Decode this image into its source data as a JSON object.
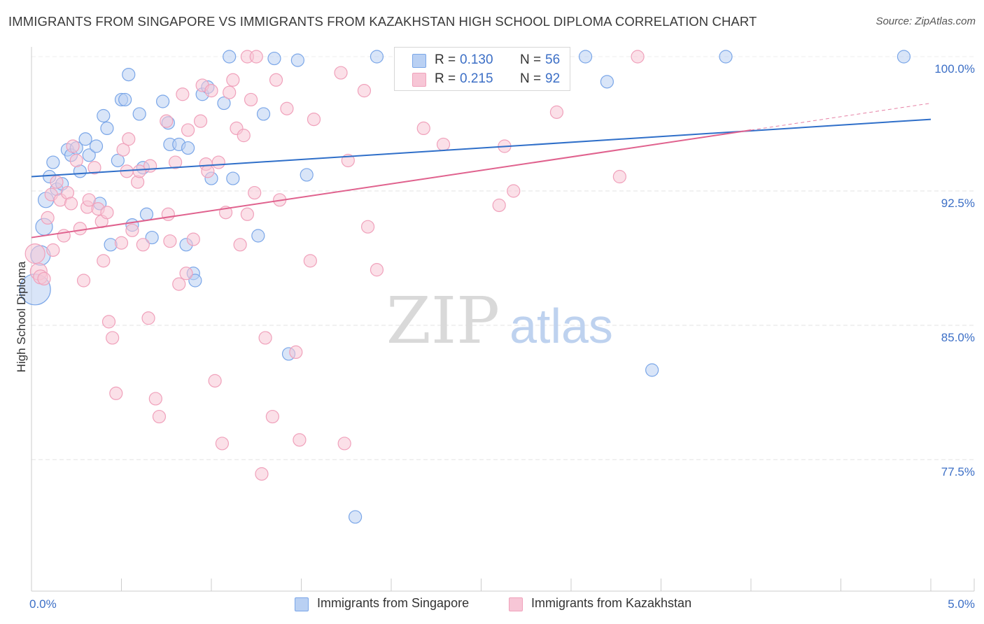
{
  "title": "IMMIGRANTS FROM SINGAPORE VS IMMIGRANTS FROM KAZAKHSTAN HIGH SCHOOL DIPLOMA CORRELATION CHART",
  "source": "Source: ZipAtlas.com",
  "watermark": {
    "zip": "ZIP",
    "atlas": "atlas"
  },
  "legend": {
    "r_label": "R = ",
    "n_label": "N = ",
    "rows": [
      {
        "r": "0.130",
        "n": "56"
      },
      {
        "r": "0.215",
        "n": "92"
      }
    ]
  },
  "chart_data": {
    "type": "scatter",
    "title": "IMMIGRANTS FROM SINGAPORE VS IMMIGRANTS FROM KAZAKHSTAN HIGH SCHOOL DIPLOMA CORRELATION CHART",
    "xlabel": "",
    "ylabel": "High School Diploma",
    "xlim": [
      0,
      5
    ],
    "ylim": [
      70,
      100.8
    ],
    "x_tick_labels": [
      {
        "v": 0,
        "label": "0.0%"
      },
      {
        "v": 5,
        "label": "5.0%"
      }
    ],
    "x_minor_ticks": [
      0.5,
      1.0,
      1.5,
      2.0,
      2.5,
      3.0,
      3.5,
      4.0,
      4.5,
      5.0
    ],
    "y_ticks": [
      {
        "v": 100,
        "label": "100.0%"
      },
      {
        "v": 92.5,
        "label": "92.5%"
      },
      {
        "v": 85,
        "label": "85.0%"
      },
      {
        "v": 77.5,
        "label": "77.5%"
      }
    ],
    "grid": true,
    "legend_position": "top-center",
    "series": [
      {
        "name": "Immigrants from Singapore",
        "color": "#7aa6e8",
        "fill": "#b9d0f3",
        "line_color": "#2f6fc9",
        "r": 0.13,
        "n": 56,
        "trend": {
          "x": [
            0,
            5
          ],
          "y": [
            93.3,
            96.5
          ]
        },
        "points": [
          [
            0.02,
            87.0,
            22
          ],
          [
            0.05,
            88.9,
            14
          ],
          [
            0.07,
            90.5,
            12
          ],
          [
            0.08,
            92.0,
            11
          ],
          [
            0.1,
            93.3,
            9
          ],
          [
            0.12,
            94.1,
            9
          ],
          [
            0.14,
            92.6,
            9
          ],
          [
            0.17,
            92.9,
            9
          ],
          [
            0.2,
            94.8,
            9
          ],
          [
            0.22,
            94.5,
            9
          ],
          [
            0.25,
            94.9,
            9
          ],
          [
            0.27,
            93.6,
            9
          ],
          [
            0.3,
            95.4,
            9
          ],
          [
            0.32,
            94.5,
            9
          ],
          [
            0.36,
            95.0,
            9
          ],
          [
            0.38,
            91.8,
            9
          ],
          [
            0.4,
            96.7,
            9
          ],
          [
            0.42,
            96.0,
            9
          ],
          [
            0.44,
            89.5,
            9
          ],
          [
            0.48,
            94.2,
            9
          ],
          [
            0.5,
            97.6,
            9
          ],
          [
            0.52,
            97.6,
            9
          ],
          [
            0.54,
            99.0,
            9
          ],
          [
            0.56,
            90.6,
            9
          ],
          [
            0.6,
            96.8,
            9
          ],
          [
            0.62,
            93.8,
            9
          ],
          [
            0.64,
            91.2,
            9
          ],
          [
            0.67,
            89.9,
            9
          ],
          [
            0.73,
            97.5,
            9
          ],
          [
            0.76,
            96.3,
            9
          ],
          [
            0.77,
            95.1,
            9
          ],
          [
            0.82,
            95.1,
            9
          ],
          [
            0.86,
            89.5,
            9
          ],
          [
            0.87,
            94.9,
            9
          ],
          [
            0.9,
            87.9,
            9
          ],
          [
            0.91,
            87.5,
            9
          ],
          [
            0.95,
            97.9,
            9
          ],
          [
            0.98,
            98.3,
            9
          ],
          [
            1.0,
            93.2,
            9
          ],
          [
            1.07,
            97.4,
            9
          ],
          [
            1.1,
            100.0,
            9
          ],
          [
            1.12,
            93.2,
            9
          ],
          [
            1.26,
            90.0,
            9
          ],
          [
            1.29,
            96.8,
            9
          ],
          [
            1.35,
            99.9,
            9
          ],
          [
            1.43,
            83.4,
            9
          ],
          [
            1.48,
            99.8,
            9
          ],
          [
            1.53,
            93.4,
            9
          ],
          [
            1.8,
            74.3,
            9
          ],
          [
            1.92,
            100.0,
            9
          ],
          [
            3.08,
            100.0,
            9
          ],
          [
            3.2,
            98.6,
            9
          ],
          [
            3.45,
            82.5,
            9
          ],
          [
            3.86,
            100.0,
            9
          ],
          [
            4.85,
            100.0,
            9
          ]
        ]
      },
      {
        "name": "Immigrants from Kazakhstan",
        "color": "#f0a1bb",
        "fill": "#f7c6d6",
        "line_color": "#e0628e",
        "r": 0.215,
        "n": 92,
        "trend": {
          "x": [
            0,
            4.0
          ],
          "y": [
            89.9,
            95.9
          ]
        },
        "trend_dashed": {
          "x": [
            4.0,
            5.0
          ],
          "y": [
            95.9,
            97.4
          ]
        },
        "points": [
          [
            0.02,
            89.0,
            14
          ],
          [
            0.04,
            88.0,
            12
          ],
          [
            0.05,
            87.7,
            10
          ],
          [
            0.07,
            87.6,
            9
          ],
          [
            0.09,
            91.0,
            9
          ],
          [
            0.11,
            92.3,
            9
          ],
          [
            0.12,
            89.2,
            9
          ],
          [
            0.14,
            93.0,
            9
          ],
          [
            0.16,
            92.0,
            9
          ],
          [
            0.18,
            90.0,
            9
          ],
          [
            0.2,
            92.4,
            9
          ],
          [
            0.22,
            91.8,
            9
          ],
          [
            0.23,
            95.0,
            9
          ],
          [
            0.25,
            94.2,
            9
          ],
          [
            0.27,
            90.4,
            9
          ],
          [
            0.29,
            87.5,
            9
          ],
          [
            0.31,
            91.6,
            9
          ],
          [
            0.32,
            92.0,
            9
          ],
          [
            0.35,
            93.8,
            9
          ],
          [
            0.37,
            91.5,
            9
          ],
          [
            0.39,
            90.8,
            9
          ],
          [
            0.4,
            88.6,
            9
          ],
          [
            0.42,
            91.3,
            9
          ],
          [
            0.43,
            85.2,
            9
          ],
          [
            0.45,
            84.3,
            9
          ],
          [
            0.47,
            81.2,
            9
          ],
          [
            0.5,
            89.6,
            9
          ],
          [
            0.51,
            94.8,
            9
          ],
          [
            0.53,
            93.6,
            9
          ],
          [
            0.54,
            95.4,
            9
          ],
          [
            0.56,
            90.3,
            9
          ],
          [
            0.59,
            93.0,
            9
          ],
          [
            0.6,
            93.6,
            9
          ],
          [
            0.62,
            89.5,
            9
          ],
          [
            0.65,
            85.4,
            9
          ],
          [
            0.66,
            93.9,
            9
          ],
          [
            0.69,
            80.9,
            9
          ],
          [
            0.71,
            79.9,
            9
          ],
          [
            0.75,
            96.4,
            9
          ],
          [
            0.76,
            91.2,
            9
          ],
          [
            0.77,
            89.7,
            9
          ],
          [
            0.8,
            94.1,
            9
          ],
          [
            0.82,
            87.3,
            9
          ],
          [
            0.84,
            97.9,
            9
          ],
          [
            0.86,
            87.9,
            9
          ],
          [
            0.87,
            95.9,
            9
          ],
          [
            0.9,
            89.8,
            9
          ],
          [
            0.94,
            96.4,
            9
          ],
          [
            0.95,
            98.4,
            9
          ],
          [
            0.97,
            94.0,
            9
          ],
          [
            0.98,
            93.6,
            9
          ],
          [
            1.0,
            98.1,
            9
          ],
          [
            1.02,
            81.9,
            9
          ],
          [
            1.04,
            94.1,
            9
          ],
          [
            1.06,
            78.4,
            9
          ],
          [
            1.08,
            91.3,
            9
          ],
          [
            1.1,
            98.0,
            9
          ],
          [
            1.12,
            98.7,
            9
          ],
          [
            1.14,
            96.0,
            9
          ],
          [
            1.16,
            89.5,
            9
          ],
          [
            1.18,
            95.6,
            9
          ],
          [
            1.2,
            91.2,
            9
          ],
          [
            1.22,
            97.6,
            9
          ],
          [
            1.24,
            92.4,
            9
          ],
          [
            1.28,
            76.7,
            9
          ],
          [
            1.3,
            84.3,
            9
          ],
          [
            1.34,
            79.9,
            9
          ],
          [
            1.36,
            98.7,
            9
          ],
          [
            1.38,
            92.0,
            9
          ],
          [
            1.42,
            97.1,
            9
          ],
          [
            1.47,
            83.5,
            9
          ],
          [
            1.49,
            78.6,
            9
          ],
          [
            1.55,
            88.6,
            9
          ],
          [
            1.57,
            96.5,
            9
          ],
          [
            1.72,
            99.1,
            9
          ],
          [
            1.74,
            78.4,
            9
          ],
          [
            1.76,
            94.2,
            9
          ],
          [
            1.85,
            98.1,
            9
          ],
          [
            1.87,
            90.5,
            9
          ],
          [
            1.92,
            88.1,
            9
          ],
          [
            2.18,
            96.0,
            9
          ],
          [
            2.29,
            95.1,
            9
          ],
          [
            2.6,
            91.7,
            9
          ],
          [
            2.63,
            95.0,
            9
          ],
          [
            2.68,
            92.5,
            9
          ],
          [
            2.92,
            96.9,
            9
          ],
          [
            2.93,
            100.0,
            9
          ],
          [
            3.27,
            93.3,
            9
          ],
          [
            3.37,
            100.0,
            9
          ],
          [
            1.2,
            100.0,
            9
          ],
          [
            1.25,
            100.0,
            9
          ]
        ]
      }
    ]
  }
}
